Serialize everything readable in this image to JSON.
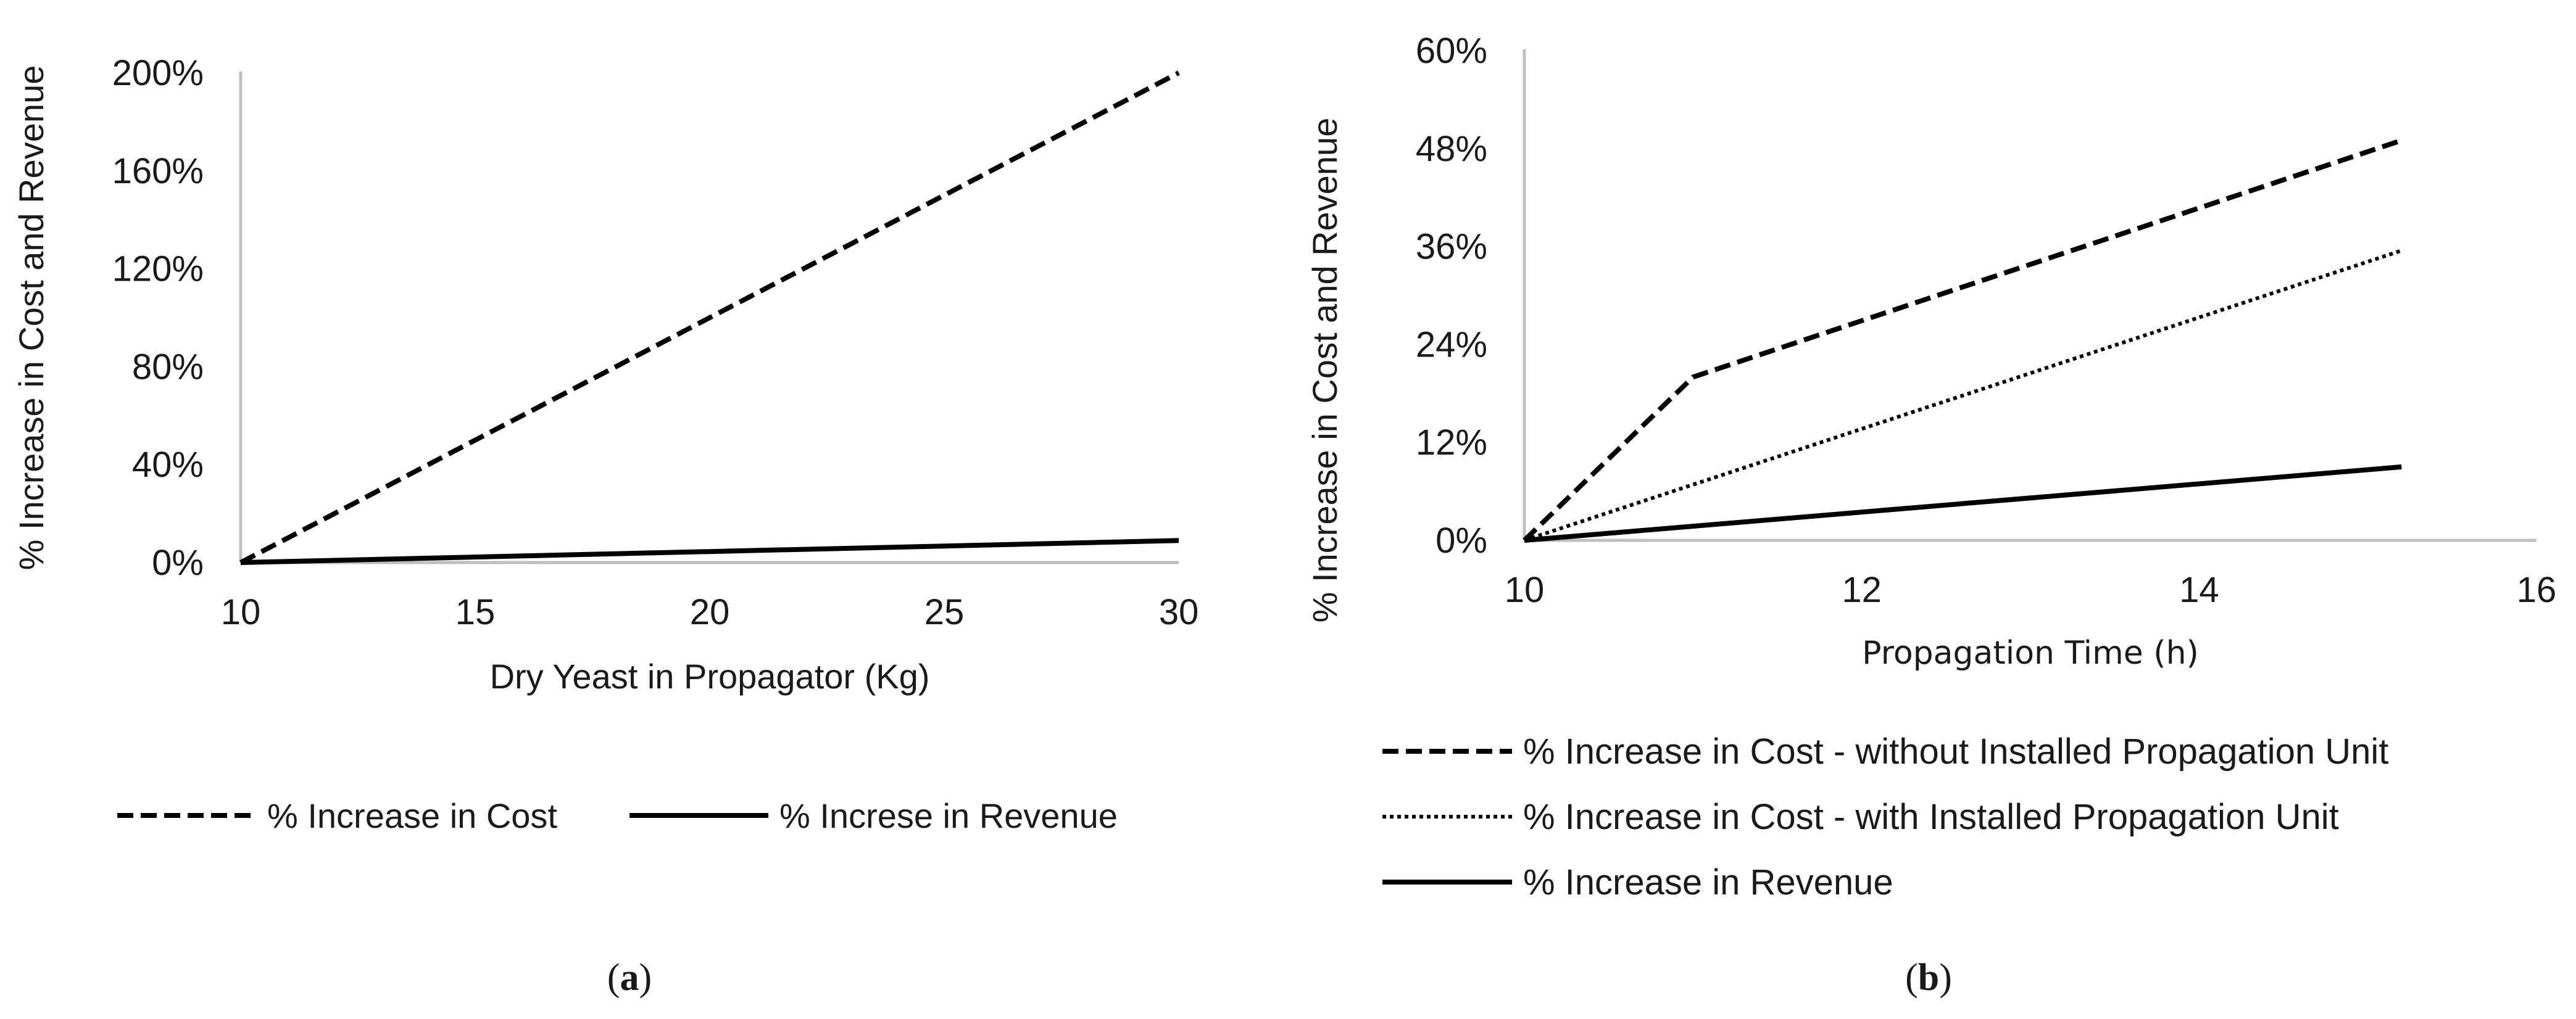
{
  "chart_data": [
    {
      "id": "a",
      "type": "line",
      "caption_open": "(",
      "caption_letter": "a",
      "caption_close": ")",
      "xlabel": "Dry Yeast in Propagator (Kg)",
      "ylabel": "% Increase in Cost and Revenue",
      "xlim": [
        10,
        30
      ],
      "ylim": [
        0,
        200
      ],
      "xticks": [
        10,
        15,
        20,
        25,
        30
      ],
      "yticks": [
        0,
        40,
        80,
        120,
        160,
        200
      ],
      "xtick_labels": [
        "10",
        "15",
        "20",
        "25",
        "30"
      ],
      "ytick_labels": [
        "0%",
        "40%",
        "80%",
        "120%",
        "160%",
        "200%"
      ],
      "grid": false,
      "legend_position": "bottom",
      "series": [
        {
          "name": "% Increase in Cost",
          "style": "dashed",
          "color": "#000000",
          "x": [
            10,
            30
          ],
          "values": [
            0,
            200
          ]
        },
        {
          "name": "% Increse in Revenue",
          "style": "solid",
          "color": "#000000",
          "x": [
            10,
            30
          ],
          "values": [
            0,
            9
          ]
        }
      ]
    },
    {
      "id": "b",
      "type": "line",
      "caption_open": "(",
      "caption_letter": "b",
      "caption_close": ")",
      "xlabel": "Propagation Time (h)",
      "ylabel": "% Increase in Cost and Revenue",
      "xlim": [
        10,
        16
      ],
      "ylim": [
        0,
        60
      ],
      "xticks": [
        10,
        12,
        14,
        16
      ],
      "yticks": [
        0,
        12,
        24,
        36,
        48,
        60
      ],
      "xtick_labels": [
        "10",
        "12",
        "14",
        "16"
      ],
      "ytick_labels": [
        "0%",
        "12%",
        "24%",
        "36%",
        "48%",
        "60%"
      ],
      "grid": false,
      "legend_position": "bottom",
      "series": [
        {
          "name": "% Increase in Cost - without Installed Propagation Unit",
          "style": "dashed",
          "color": "#000000",
          "x": [
            10,
            11,
            15.2
          ],
          "values": [
            0,
            20,
            49
          ]
        },
        {
          "name": "% Increase in Cost - with Installed Propagation Unit",
          "style": "dotted",
          "color": "#000000",
          "x": [
            10,
            15.2
          ],
          "values": [
            0,
            35.5
          ]
        },
        {
          "name": "% Increase in Revenue",
          "style": "solid",
          "color": "#000000",
          "x": [
            10,
            15.2
          ],
          "values": [
            0,
            9
          ]
        }
      ]
    }
  ]
}
